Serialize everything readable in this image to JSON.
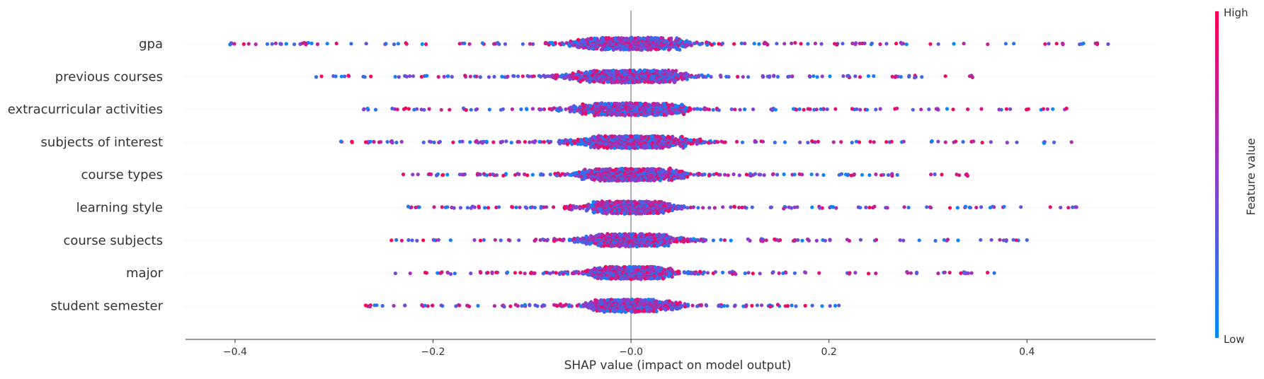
{
  "chart_data": {
    "type": "scatter",
    "subtype": "shap-beeswarm",
    "xlabel": "SHAP value (impact on model output)",
    "xlim": [
      -0.45,
      0.53
    ],
    "xticks": [
      -0.4,
      -0.2,
      0.0,
      0.2,
      0.4
    ],
    "xtick_labels": [
      "−0.4",
      "−0.2",
      "−0.0",
      "0.2",
      "0.4"
    ],
    "grid": "horizontal dotted per feature",
    "colorbar": {
      "label": "Feature value",
      "high_label": "High",
      "low_label": "Low",
      "low_color": "#008bfb",
      "high_color": "#ff0052",
      "placement": "right"
    },
    "features": [
      {
        "name": "gpa",
        "min": -0.405,
        "max": 0.482,
        "core_spread": 0.06
      },
      {
        "name": "previous courses",
        "min": -0.318,
        "max": 0.345,
        "core_spread": 0.06
      },
      {
        "name": "extracurricular activities",
        "min": -0.27,
        "max": 0.44,
        "core_spread": 0.055
      },
      {
        "name": "subjects of interest",
        "min": -0.293,
        "max": 0.445,
        "core_spread": 0.06
      },
      {
        "name": "course types",
        "min": -0.23,
        "max": 0.34,
        "core_spread": 0.05
      },
      {
        "name": "learning style",
        "min": -0.225,
        "max": 0.45,
        "core_spread": 0.04
      },
      {
        "name": "course subjects",
        "min": -0.242,
        "max": 0.4,
        "core_spread": 0.045
      },
      {
        "name": "major",
        "min": -0.238,
        "max": 0.367,
        "core_spread": 0.04
      },
      {
        "name": "student semester",
        "min": -0.268,
        "max": 0.21,
        "core_spread": 0.04
      }
    ],
    "zero_line": 0.0
  },
  "colors": {
    "axis": "#333333",
    "zero_line": "#999999",
    "grid": "#dddddd",
    "text": "#333333"
  }
}
